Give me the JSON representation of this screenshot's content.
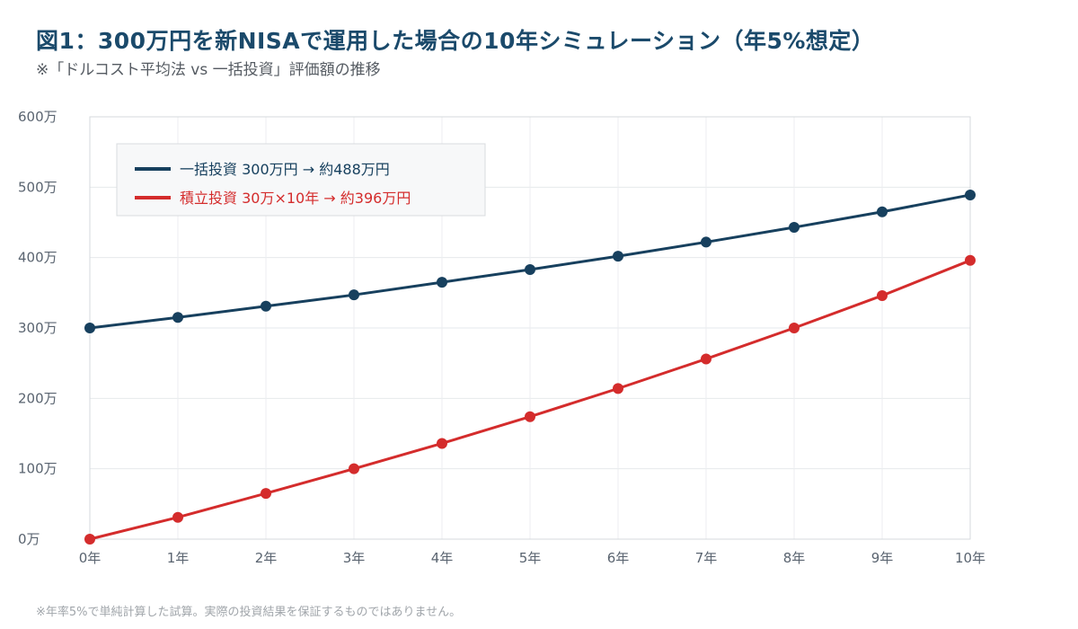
{
  "title": "図1：300万円を新NISAで運用した場合の10年シミュレーション（年5%想定）",
  "subtitle": "※「ドルコスト平均法 vs 一括投資」評価額の推移",
  "footnote": "※年率5%で単純計算した試算。実際の投資結果を保証するものではありません。",
  "colors": {
    "lump": "#17405e",
    "installment": "#d42c2c"
  },
  "chart_data": {
    "type": "line",
    "title": "図1：300万円を新NISAで運用した場合の10年シミュレーション（年5%想定）",
    "subtitle": "※「ドルコスト平均法 vs 一括投資」評価額の推移",
    "x": [
      "0年",
      "1年",
      "2年",
      "3年",
      "4年",
      "5年",
      "6年",
      "7年",
      "8年",
      "9年",
      "10年"
    ],
    "y_ticks": [
      "0万",
      "100万",
      "200万",
      "300万",
      "400万",
      "500万",
      "600万"
    ],
    "ylim": [
      0,
      600
    ],
    "grid": true,
    "legend_position": "top-left",
    "series": [
      {
        "name": "一括投資 300万円 → 約488万円",
        "color": "#17405e",
        "values": [
          300,
          315,
          331,
          347,
          365,
          383,
          402,
          422,
          443,
          465,
          489
        ]
      },
      {
        "name": "積立投資 30万×10年 → 約396万円",
        "color": "#d42c2c",
        "values": [
          0,
          31,
          65,
          100,
          136,
          174,
          214,
          256,
          300,
          346,
          396
        ]
      }
    ]
  }
}
